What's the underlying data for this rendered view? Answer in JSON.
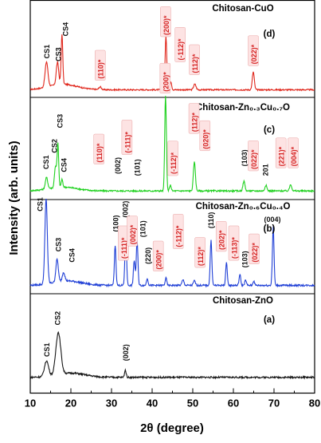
{
  "chart_data": {
    "type": "line",
    "xlabel": "2θ (degree)",
    "ylabel": "Intensity (arb. units)",
    "xlim": [
      10,
      80
    ],
    "xticks": [
      10,
      20,
      30,
      40,
      50,
      60,
      70,
      80
    ],
    "grid": false,
    "series": [
      {
        "name": "Chitosan-CuO",
        "tag": "(d)",
        "color": "#e0261b",
        "baseline": 0.05,
        "noise": 0.012,
        "broad": [
          {
            "c": 18,
            "h": 0.1,
            "w": 3.5
          }
        ],
        "peaks": [
          {
            "x": 14.0,
            "h": 0.45,
            "w": 0.35
          },
          {
            "x": 16.7,
            "h": 0.4,
            "w": 0.3
          },
          {
            "x": 17.8,
            "h": 0.9,
            "w": 0.2
          },
          {
            "x": 27.2,
            "h": 0.05,
            "w": 0.3
          },
          {
            "x": 43.4,
            "h": 0.95,
            "w": 0.2
          },
          {
            "x": 44.6,
            "h": 0.15,
            "w": 0.2
          },
          {
            "x": 50.5,
            "h": 0.1,
            "w": 0.3
          },
          {
            "x": 64.9,
            "h": 0.32,
            "w": 0.25
          }
        ],
        "labels": [
          {
            "x": 14.0,
            "y": 0.58,
            "text": "CS1",
            "color": "#111111",
            "rot": -90,
            "boxed": false
          },
          {
            "x": 16.9,
            "y": 0.53,
            "text": "CS3",
            "color": "#111111",
            "rot": -90,
            "boxed": false
          },
          {
            "x": 18.6,
            "y": 0.98,
            "text": "CS4",
            "color": "#111111",
            "rot": -90,
            "boxed": false
          },
          {
            "x": 27.3,
            "y": 0.22,
            "text": "(110)*",
            "color": "#d62626",
            "rot": -90,
            "boxed": true
          },
          {
            "x": 43.4,
            "y": 1.0,
            "text": "(200)*",
            "color": "#d62626",
            "rot": -90,
            "boxed": true
          },
          {
            "x": 47.0,
            "y": 0.55,
            "text": "(-112)*",
            "color": "#d62626",
            "rot": -90,
            "boxed": true
          },
          {
            "x": 50.5,
            "y": 0.32,
            "text": "(112)*",
            "color": "#d62626",
            "rot": -90,
            "boxed": true
          },
          {
            "x": 65.0,
            "y": 0.48,
            "text": "(022)*",
            "color": "#d62626",
            "rot": -90,
            "boxed": true
          }
        ]
      },
      {
        "name": "Chitosan-Zn₀.₃Cu₀.₇O",
        "tag": "(c)",
        "color": "#1ed11e",
        "baseline": 0.04,
        "noise": 0.008,
        "broad": [
          {
            "c": 18,
            "h": 0.04,
            "w": 3.5
          }
        ],
        "peaks": [
          {
            "x": 14.0,
            "h": 0.12,
            "w": 0.3
          },
          {
            "x": 16.2,
            "h": 0.22,
            "w": 0.25
          },
          {
            "x": 16.8,
            "h": 0.45,
            "w": 0.2
          },
          {
            "x": 17.8,
            "h": 0.08,
            "w": 0.2
          },
          {
            "x": 43.3,
            "h": 1.0,
            "w": 0.2
          },
          {
            "x": 44.5,
            "h": 0.06,
            "w": 0.2
          },
          {
            "x": 50.4,
            "h": 0.3,
            "w": 0.25
          },
          {
            "x": 62.6,
            "h": 0.1,
            "w": 0.25
          },
          {
            "x": 68.0,
            "h": 0.06,
            "w": 0.25
          },
          {
            "x": 74.1,
            "h": 0.07,
            "w": 0.25
          }
        ],
        "labels": [
          {
            "x": 13.8,
            "y": 0.25,
            "text": "CS1",
            "color": "#111111",
            "rot": -90,
            "boxed": false
          },
          {
            "x": 15.9,
            "y": 0.42,
            "text": "CS2",
            "color": "#111111",
            "rot": -90,
            "boxed": false
          },
          {
            "x": 17.3,
            "y": 0.68,
            "text": "CS3",
            "color": "#111111",
            "rot": -90,
            "boxed": false
          },
          {
            "x": 18.2,
            "y": 0.22,
            "text": "CS4",
            "color": "#111111",
            "rot": -90,
            "boxed": false
          },
          {
            "x": 27.0,
            "y": 0.32,
            "text": "(110)*",
            "color": "#d62626",
            "rot": -90,
            "boxed": true
          },
          {
            "x": 31.5,
            "y": 0.2,
            "text": "(002)",
            "color": "#111111",
            "rot": -90,
            "boxed": false
          },
          {
            "x": 33.9,
            "y": 0.42,
            "text": "(-111)*",
            "color": "#d62626",
            "rot": -90,
            "boxed": true
          },
          {
            "x": 36.3,
            "y": 0.18,
            "text": "(101)",
            "color": "#111111",
            "rot": -90,
            "boxed": false
          },
          {
            "x": 43.3,
            "y": 1.06,
            "text": "(200)*",
            "color": "#d62626",
            "rot": -90,
            "boxed": true
          },
          {
            "x": 45.2,
            "y": 0.2,
            "text": "(-112)*",
            "color": "#d62626",
            "rot": -90,
            "boxed": true
          },
          {
            "x": 50.4,
            "y": 0.64,
            "text": "(112)*",
            "color": "#d62626",
            "rot": -90,
            "boxed": true
          },
          {
            "x": 53.1,
            "y": 0.46,
            "text": "(020)*",
            "color": "#d62626",
            "rot": -90,
            "boxed": true
          },
          {
            "x": 62.6,
            "y": 0.28,
            "text": "(103)",
            "color": "#111111",
            "rot": -90,
            "boxed": false
          },
          {
            "x": 65.0,
            "y": 0.25,
            "text": "(022)*",
            "color": "#d62626",
            "rot": -90,
            "boxed": true
          },
          {
            "x": 67.8,
            "y": 0.18,
            "text": "201",
            "color": "#111111",
            "rot": -90,
            "boxed": false
          },
          {
            "x": 71.8,
            "y": 0.28,
            "text": "(221)*",
            "color": "#d62626",
            "rot": -90,
            "boxed": true
          },
          {
            "x": 74.8,
            "y": 0.28,
            "text": "(004)*",
            "color": "#d62626",
            "rot": -90,
            "boxed": true
          }
        ]
      },
      {
        "name": "Chitosan-Zn₀.₆Cu₀.₄O",
        "tag": "(b)",
        "color": "#1f3fd6",
        "baseline": 0.04,
        "noise": 0.01,
        "broad": [
          {
            "c": 19,
            "h": 0.05,
            "w": 3.5
          }
        ],
        "peaks": [
          {
            "x": 13.9,
            "h": 0.95,
            "w": 0.3
          },
          {
            "x": 16.6,
            "h": 0.25,
            "w": 0.3
          },
          {
            "x": 18.2,
            "h": 0.1,
            "w": 0.3
          },
          {
            "x": 30.9,
            "h": 0.45,
            "w": 0.2
          },
          {
            "x": 33.5,
            "h": 0.6,
            "w": 0.2
          },
          {
            "x": 35.6,
            "h": 0.28,
            "w": 0.2
          },
          {
            "x": 36.3,
            "h": 0.5,
            "w": 0.2
          },
          {
            "x": 38.8,
            "h": 0.08,
            "w": 0.2
          },
          {
            "x": 43.4,
            "h": 0.08,
            "w": 0.2
          },
          {
            "x": 47.6,
            "h": 0.06,
            "w": 0.25
          },
          {
            "x": 50.4,
            "h": 0.05,
            "w": 0.25
          },
          {
            "x": 54.5,
            "h": 0.5,
            "w": 0.2
          },
          {
            "x": 58.3,
            "h": 0.25,
            "w": 0.2
          },
          {
            "x": 61.6,
            "h": 0.12,
            "w": 0.2
          },
          {
            "x": 63.0,
            "h": 0.06,
            "w": 0.2
          },
          {
            "x": 65.0,
            "h": 0.05,
            "w": 0.2
          },
          {
            "x": 69.8,
            "h": 0.65,
            "w": 0.2
          }
        ],
        "labels": [
          {
            "x": 12.4,
            "y": 0.85,
            "text": "CS1",
            "color": "#111111",
            "rot": -90,
            "boxed": false
          },
          {
            "x": 16.9,
            "y": 0.4,
            "text": "CS3",
            "color": "#111111",
            "rot": -90,
            "boxed": false
          },
          {
            "x": 20.2,
            "y": 0.28,
            "text": "CS4",
            "color": "#111111",
            "rot": -90,
            "boxed": false
          },
          {
            "x": 31.0,
            "y": 0.62,
            "text": "(100)",
            "color": "#111111",
            "rot": -90,
            "boxed": false
          },
          {
            "x": 33.3,
            "y": 0.78,
            "text": "(002)",
            "color": "#111111",
            "rot": -90,
            "boxed": false
          },
          {
            "x": 33.0,
            "y": 0.32,
            "text": "(-111)*",
            "color": "#d62626",
            "rot": -90,
            "boxed": true
          },
          {
            "x": 35.2,
            "y": 0.48,
            "text": "(002)*",
            "color": "#d62626",
            "rot": -90,
            "boxed": true
          },
          {
            "x": 37.6,
            "y": 0.56,
            "text": "(101)",
            "color": "#111111",
            "rot": -90,
            "boxed": false
          },
          {
            "x": 38.9,
            "y": 0.26,
            "text": "(220)",
            "color": "#111111",
            "rot": -90,
            "boxed": false
          },
          {
            "x": 41.6,
            "y": 0.2,
            "text": "(200)*",
            "color": "#d62626",
            "rot": -90,
            "boxed": true
          },
          {
            "x": 46.5,
            "y": 0.45,
            "text": "(-112)*",
            "color": "#d62626",
            "rot": -90,
            "boxed": true
          },
          {
            "x": 51.9,
            "y": 0.24,
            "text": "(112)*",
            "color": "#d62626",
            "rot": -90,
            "boxed": true
          },
          {
            "x": 54.4,
            "y": 0.66,
            "text": "(110)",
            "color": "#111111",
            "rot": -90,
            "boxed": false
          },
          {
            "x": 57.1,
            "y": 0.42,
            "text": "(202)*",
            "color": "#d62626",
            "rot": -90,
            "boxed": true
          },
          {
            "x": 60.2,
            "y": 0.32,
            "text": "(-113)*",
            "color": "#d62626",
            "rot": -90,
            "boxed": true
          },
          {
            "x": 62.7,
            "y": 0.22,
            "text": "(103)",
            "color": "#111111",
            "rot": -90,
            "boxed": false
          },
          {
            "x": 65.2,
            "y": 0.28,
            "text": "(022)*",
            "color": "#d62626",
            "rot": -90,
            "boxed": true
          },
          {
            "x": 69.6,
            "y": 0.78,
            "text": "(004)",
            "color": "#111111",
            "rot": 0,
            "boxed": false
          }
        ]
      },
      {
        "name": "Chitosan-ZnO",
        "tag": "(a)",
        "color": "#151515",
        "baseline": 0.06,
        "noise": 0.012,
        "broad": [
          {
            "c": 20,
            "h": 0.06,
            "w": 3.5
          }
        ],
        "peaks": [
          {
            "x": 14.0,
            "h": 0.22,
            "w": 0.5
          },
          {
            "x": 16.9,
            "h": 0.6,
            "w": 0.6
          },
          {
            "x": 33.4,
            "h": 0.1,
            "w": 0.2
          }
        ],
        "labels": [
          {
            "x": 14.0,
            "y": 0.33,
            "text": "CS1",
            "color": "#111111",
            "rot": -90,
            "boxed": false
          },
          {
            "x": 16.7,
            "y": 0.78,
            "text": "CS2",
            "color": "#111111",
            "rot": -90,
            "boxed": false
          },
          {
            "x": 33.4,
            "y": 0.27,
            "text": "(002)",
            "color": "#111111",
            "rot": -90,
            "boxed": false
          }
        ]
      }
    ]
  }
}
